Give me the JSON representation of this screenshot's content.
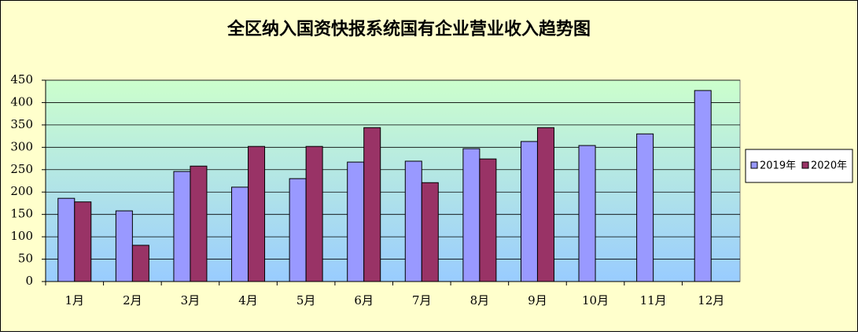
{
  "chart_data": {
    "type": "bar",
    "title": "全区纳入国资快报系统国有企业营业收入趋势图",
    "categories": [
      "1月",
      "2月",
      "3月",
      "4月",
      "5月",
      "6月",
      "7月",
      "8月",
      "9月",
      "10月",
      "11月",
      "12月"
    ],
    "series": [
      {
        "name": "2019年",
        "color": "#9999ff",
        "values": [
          186,
          158,
          246,
          211,
          230,
          267,
          269,
          297,
          313,
          304,
          330,
          427
        ]
      },
      {
        "name": "2020年",
        "color": "#993366",
        "values": [
          178,
          81,
          258,
          302,
          302,
          344,
          221,
          274,
          344,
          null,
          null,
          null
        ]
      }
    ],
    "ylim": [
      0,
      450
    ],
    "yticks": [
      0,
      50,
      100,
      150,
      200,
      250,
      300,
      350,
      400,
      450
    ],
    "grid": true,
    "legend": "right"
  }
}
